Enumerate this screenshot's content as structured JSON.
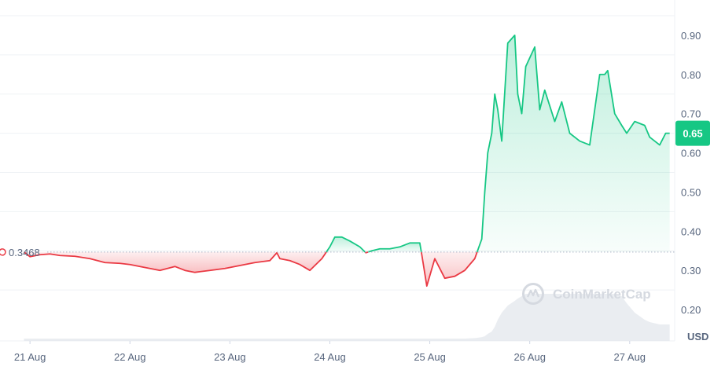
{
  "chart_data": {
    "type": "area",
    "unit_label": "USD",
    "reference_value": 0.3468,
    "reference_label": "0.3468",
    "current_value": 0.65,
    "current_label": "0.65",
    "watermark": "CoinMarketCap",
    "x_tick_labels": [
      "21 Aug",
      "22 Aug",
      "23 Aug",
      "24 Aug",
      "25 Aug",
      "26 Aug",
      "27 Aug"
    ],
    "x_tick_days": [
      21,
      22,
      23,
      24,
      25,
      26,
      27
    ],
    "y_tick_labels": [
      "0.20",
      "0.30",
      "0.40",
      "0.50",
      "0.60",
      "0.70",
      "0.80",
      "0.90"
    ],
    "y_tick_values": [
      0.2,
      0.3,
      0.4,
      0.5,
      0.6,
      0.7,
      0.8,
      0.9
    ],
    "ylim": [
      0.12,
      0.99
    ],
    "xlim": [
      20.7,
      27.45
    ],
    "colors": {
      "up_line": "#16c784",
      "up_fill": "#16c784",
      "down_line": "#ea3943",
      "down_fill": "#ea3943",
      "grid": "#eff2f5",
      "reference_line": "#a6b0c3",
      "volume": "#dfe3ea"
    },
    "series": [
      {
        "x": [
          20.94,
          21.0,
          21.1,
          21.2,
          21.3,
          21.45,
          21.6,
          21.75,
          21.9,
          22.0,
          22.1,
          22.2,
          22.3,
          22.45,
          22.55,
          22.65,
          22.8,
          22.95,
          23.05,
          23.15,
          23.25,
          23.4,
          23.47,
          23.5,
          23.6,
          23.7,
          23.8,
          23.92,
          24.0,
          24.05,
          24.12,
          24.2,
          24.3,
          24.36,
          24.42,
          24.5,
          24.6,
          24.7,
          24.8,
          24.9,
          24.92,
          24.97,
          25.05,
          25.15,
          25.25,
          25.35,
          25.45,
          25.52,
          25.55,
          25.58,
          25.62,
          25.65,
          25.68,
          25.72,
          25.78,
          25.85,
          25.88,
          25.92,
          25.96,
          26.05,
          26.1,
          26.15,
          26.25,
          26.32,
          26.4,
          26.5,
          26.6,
          26.7,
          26.75,
          26.78,
          26.85,
          26.92,
          26.97,
          27.05,
          27.15,
          27.2,
          27.3,
          27.36,
          27.4
        ],
        "y": [
          0.347,
          0.335,
          0.34,
          0.342,
          0.338,
          0.336,
          0.33,
          0.32,
          0.318,
          0.315,
          0.31,
          0.305,
          0.3,
          0.31,
          0.3,
          0.295,
          0.3,
          0.305,
          0.31,
          0.315,
          0.32,
          0.325,
          0.345,
          0.33,
          0.325,
          0.315,
          0.3,
          0.33,
          0.36,
          0.385,
          0.385,
          0.375,
          0.36,
          0.345,
          0.35,
          0.355,
          0.355,
          0.36,
          0.37,
          0.37,
          0.34,
          0.26,
          0.33,
          0.28,
          0.285,
          0.3,
          0.33,
          0.38,
          0.5,
          0.6,
          0.65,
          0.75,
          0.71,
          0.63,
          0.88,
          0.9,
          0.75,
          0.7,
          0.82,
          0.87,
          0.71,
          0.76,
          0.68,
          0.73,
          0.65,
          0.63,
          0.62,
          0.8,
          0.8,
          0.81,
          0.7,
          0.67,
          0.65,
          0.68,
          0.67,
          0.64,
          0.62,
          0.65,
          0.65
        ],
        "volume": [
          0.005,
          0.005,
          0.005,
          0.005,
          0.005,
          0.005,
          0.005,
          0.005,
          0.005,
          0.005,
          0.005,
          0.005,
          0.005,
          0.005,
          0.005,
          0.005,
          0.005,
          0.005,
          0.005,
          0.005,
          0.005,
          0.005,
          0.005,
          0.005,
          0.005,
          0.005,
          0.005,
          0.005,
          0.005,
          0.005,
          0.005,
          0.005,
          0.005,
          0.005,
          0.005,
          0.005,
          0.005,
          0.005,
          0.005,
          0.005,
          0.005,
          0.005,
          0.005,
          0.005,
          0.005,
          0.005,
          0.006,
          0.008,
          0.01,
          0.015,
          0.02,
          0.03,
          0.045,
          0.06,
          0.075,
          0.085,
          0.09,
          0.095,
          0.1,
          0.1,
          0.1,
          0.1,
          0.1,
          0.1,
          0.1,
          0.1,
          0.1,
          0.1,
          0.1,
          0.1,
          0.1,
          0.095,
          0.08,
          0.06,
          0.045,
          0.04,
          0.035,
          0.035,
          0.035
        ]
      }
    ]
  }
}
